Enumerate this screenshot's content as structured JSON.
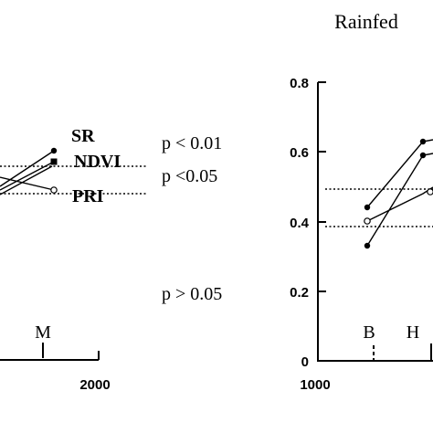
{
  "chart_data": [
    {
      "type": "line",
      "panel": "left (cropped)",
      "title": "",
      "xlabel": "",
      "ylabel": "",
      "x_ticks": [
        "2000"
      ],
      "stage_markers": [
        {
          "label": "M",
          "x": 1800
        }
      ],
      "series": [
        {
          "name": "SR",
          "marker": "filled-circle",
          "x": [
            1000,
            1800
          ],
          "y": [
            0.42,
            0.56
          ]
        },
        {
          "name": "NDVI",
          "marker": "filled-square",
          "x": [
            1000,
            1800
          ],
          "y": [
            0.4,
            0.53
          ]
        },
        {
          "name": "",
          "marker": "none",
          "x": [
            1000,
            1800
          ],
          "y": [
            0.38,
            0.51
          ]
        },
        {
          "name": "PRI",
          "marker": "open-circle",
          "x": [
            1000,
            1800
          ],
          "y": [
            0.46,
            0.4
          ]
        }
      ],
      "reference_lines": [
        0.52,
        0.46
      ],
      "annotations": [
        "p < 0.01",
        "p <0.05",
        "p > 0.05"
      ],
      "grid": false
    },
    {
      "type": "line",
      "panel": "right (cropped)",
      "title": "Rainfed",
      "xlabel": "",
      "ylabel": "",
      "y_ticks": [
        "0",
        "0.2",
        "0.4",
        "0.6",
        "0.8"
      ],
      "ylim": [
        0,
        0.8
      ],
      "x_ticks": [
        "1000"
      ],
      "stage_markers": [
        {
          "label": "B",
          "x": 1200
        },
        {
          "label": "H",
          "x": 1390
        }
      ],
      "series": [
        {
          "name": "",
          "marker": "filled-circle",
          "x": [
            1200,
            1430,
            1500
          ],
          "y": [
            0.44,
            0.62,
            0.63
          ]
        },
        {
          "name": "",
          "marker": "filled-circle",
          "x": [
            1200,
            1430,
            1500
          ],
          "y": [
            0.33,
            0.59,
            0.6
          ]
        },
        {
          "name": "",
          "marker": "open-circle",
          "x": [
            1200,
            1430,
            1500
          ],
          "y": [
            0.4,
            0.48,
            0.5
          ]
        }
      ],
      "reference_lines": [
        0.49,
        0.385
      ],
      "grid": false
    }
  ],
  "labels": {
    "title_right": "Rainfed",
    "legend_sr": "SR",
    "legend_ndvi": "NDVI",
    "legend_pri": "PRI",
    "p1": "p < 0.01",
    "p2": "p <0.05",
    "p3": "p > 0.05",
    "left_stage": "M",
    "left_x_tick": "2000",
    "right_stage_b": "B",
    "right_stage_h": "H",
    "right_x_tick": "1000",
    "right_y_ticks": [
      "0",
      "0.2",
      "0.4",
      "0.6",
      "0.8"
    ]
  }
}
